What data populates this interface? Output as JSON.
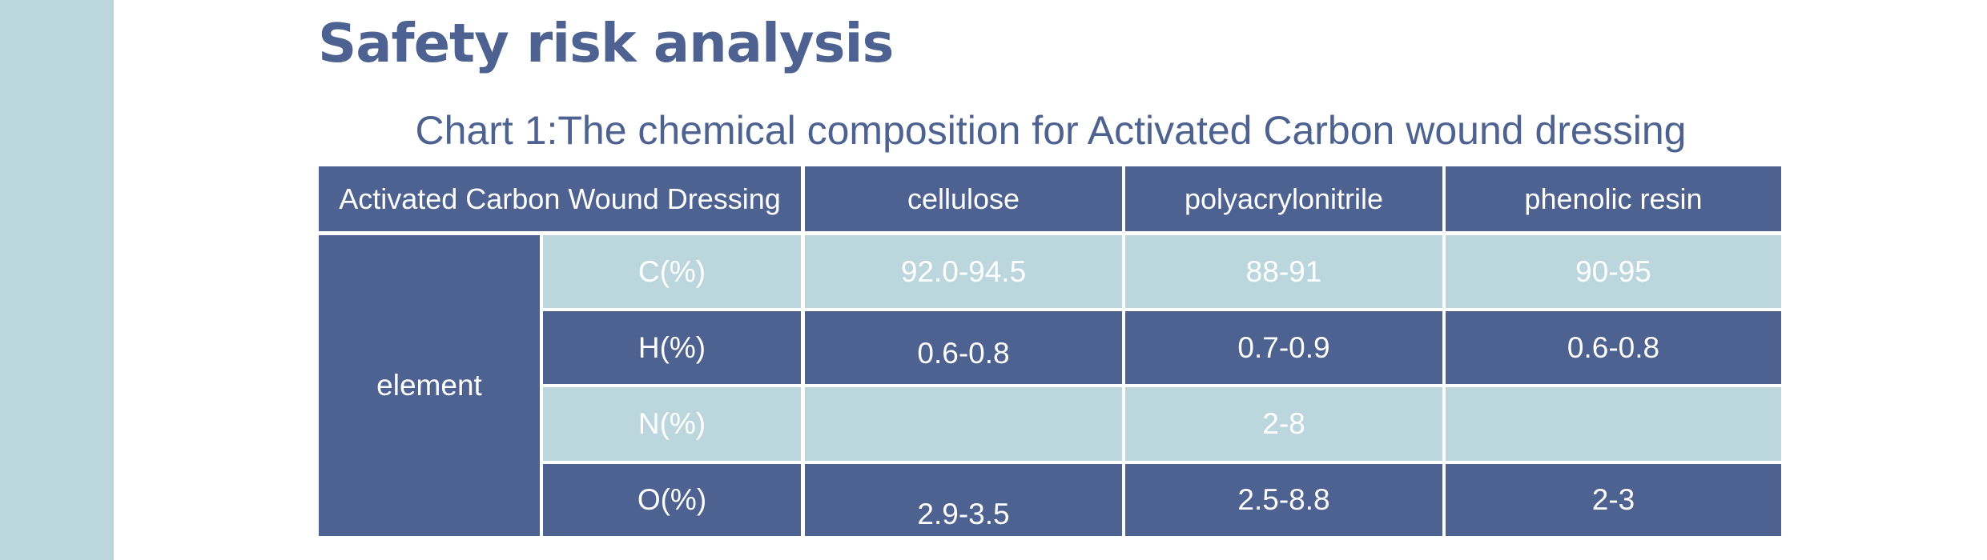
{
  "page": {
    "title": "Safety risk analysis",
    "caption": "Chart 1:The chemical composition for Activated Carbon wound dressing"
  },
  "table": {
    "header": {
      "product": "Activated Carbon Wound Dressing",
      "columns": [
        "cellulose",
        "polyacrylonitrile",
        "phenolic resin"
      ]
    },
    "group_label": "element",
    "rows": [
      {
        "label": "C(%)",
        "values": [
          "92.0-94.5",
          "88-91",
          "90-95"
        ]
      },
      {
        "label": "H(%)",
        "values": [
          "0.6-0.8",
          "0.7-0.9",
          "0.6-0.8"
        ]
      },
      {
        "label": "N(%)",
        "values": [
          "",
          "2-8",
          ""
        ]
      },
      {
        "label": "O(%)",
        "values": [
          "2.9-3.5",
          "2.5-8.8",
          "2-3"
        ]
      }
    ]
  },
  "colors": {
    "dark": "#4d6290",
    "light": "#bcd6de",
    "text": "#ffffff"
  }
}
